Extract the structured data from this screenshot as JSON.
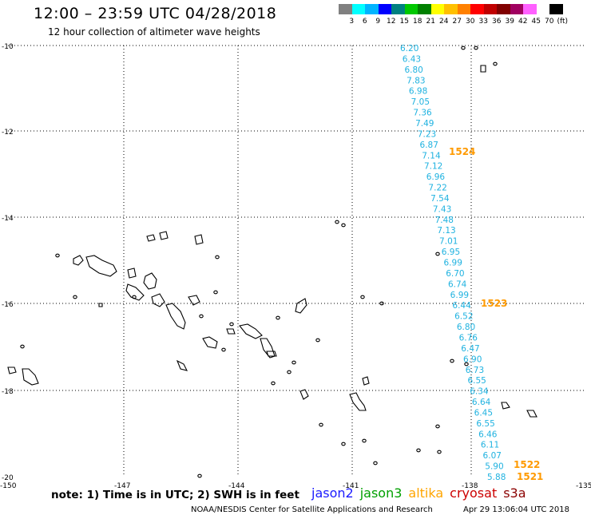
{
  "header": {
    "title": "12:00 – 23:59 UTC 04/28/2018",
    "subtitle": "12 hour collection of altimeter wave heights"
  },
  "legend": {
    "colors": [
      "#808080",
      "#00ffff",
      "#00b4ff",
      "#0000ff",
      "#008080",
      "#00c800",
      "#008000",
      "#ffff00",
      "#ffc000",
      "#ff8000",
      "#ff0000",
      "#c00000",
      "#800000",
      "#a00060",
      "#ff60ff",
      "#ffffff",
      "#000000"
    ],
    "labels": [
      "3",
      "6",
      "9",
      "12",
      "15",
      "18",
      "21",
      "24",
      "27",
      "30",
      "33",
      "36",
      "39",
      "42",
      "45",
      "70",
      "(ft)"
    ]
  },
  "axes": {
    "lon_ticks": [
      "-150",
      "-147",
      "-144",
      "-141",
      "-138",
      "-135"
    ],
    "lat_ticks": [
      "-10",
      "-12",
      "-14",
      "-16",
      "-18",
      "-20"
    ]
  },
  "observations": {
    "color": "#1fb2e0",
    "values": [
      "6.20",
      "6.43",
      "6.80",
      "7.83",
      "6.98",
      "7.05",
      "7.36",
      "7.49",
      "7.23",
      "6.87",
      "7.14",
      "7.12",
      "6.96",
      "7.22",
      "7.54",
      "7.43",
      "7.48",
      "7.13",
      "7.01",
      "6.95",
      "6.99",
      "6.70",
      "6.74",
      "6.99",
      "6.44",
      "6.52",
      "6.80",
      "6.76",
      "6.47",
      "6.90",
      "6.73",
      "6.55",
      "6.34",
      "6.64",
      "6.45",
      "6.55",
      "6.46",
      "6.11",
      "6.07",
      "5.90",
      "5.88"
    ]
  },
  "pass_times": {
    "color": "#ff9a00",
    "labels": [
      "1524",
      "1523",
      "1522",
      "1521"
    ]
  },
  "note": "note: 1) Time is in UTC; 2) SWH is in feet",
  "satellites": [
    {
      "name": "jason2",
      "color": "#1a1aff"
    },
    {
      "name": "jason3",
      "color": "#00a000"
    },
    {
      "name": "altika",
      "color": "#ffa500"
    },
    {
      "name": "cryosat",
      "color": "#cc0000"
    },
    {
      "name": "s3a",
      "color": "#8b0000"
    }
  ],
  "footer": {
    "credit": "NOAA/NESDIS Center for Satellite Applications and Research",
    "timestamp": "Apr 29 13:06:04 UTC 2018"
  }
}
